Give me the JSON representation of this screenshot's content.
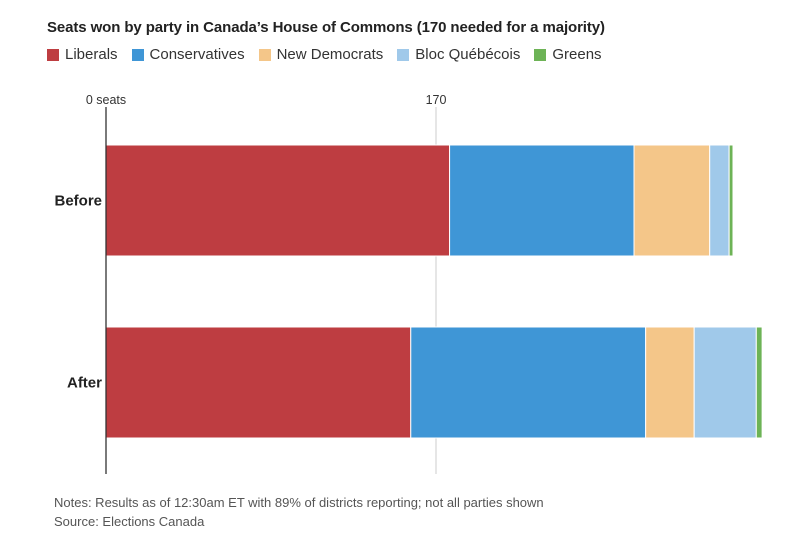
{
  "chart_data": {
    "type": "bar",
    "orientation": "horizontal",
    "stacked": true,
    "title": "Seats won by party in Canada’s House of Commons (170 needed for a majority)",
    "categories": [
      "Before",
      "After"
    ],
    "series": [
      {
        "name": "Liberals",
        "color": "#be3d41",
        "values": [
          177,
          157
        ]
      },
      {
        "name": "Conservatives",
        "color": "#3f96d6",
        "values": [
          95,
          121
        ]
      },
      {
        "name": "New Democrats",
        "color": "#f4c689",
        "values": [
          39,
          25
        ]
      },
      {
        "name": "Bloc Québécois",
        "color": "#a0c9ea",
        "values": [
          10,
          32
        ]
      },
      {
        "name": "Greens",
        "color": "#6db356",
        "values": [
          2,
          3
        ]
      }
    ],
    "xaxis": {
      "ticks": [
        {
          "value": 0,
          "label": "0 seats"
        },
        {
          "value": 170,
          "label": "170"
        }
      ],
      "range": [
        0,
        340
      ]
    },
    "xlabel": "",
    "ylabel": "",
    "legend": "top-left",
    "grid": false,
    "reference_line": {
      "value": 170,
      "label": "170"
    }
  },
  "footer": {
    "notes": "Notes: Results as of 12:30am ET with 89% of districts reporting; not all parties shown",
    "source": "Source: Elections Canada"
  }
}
